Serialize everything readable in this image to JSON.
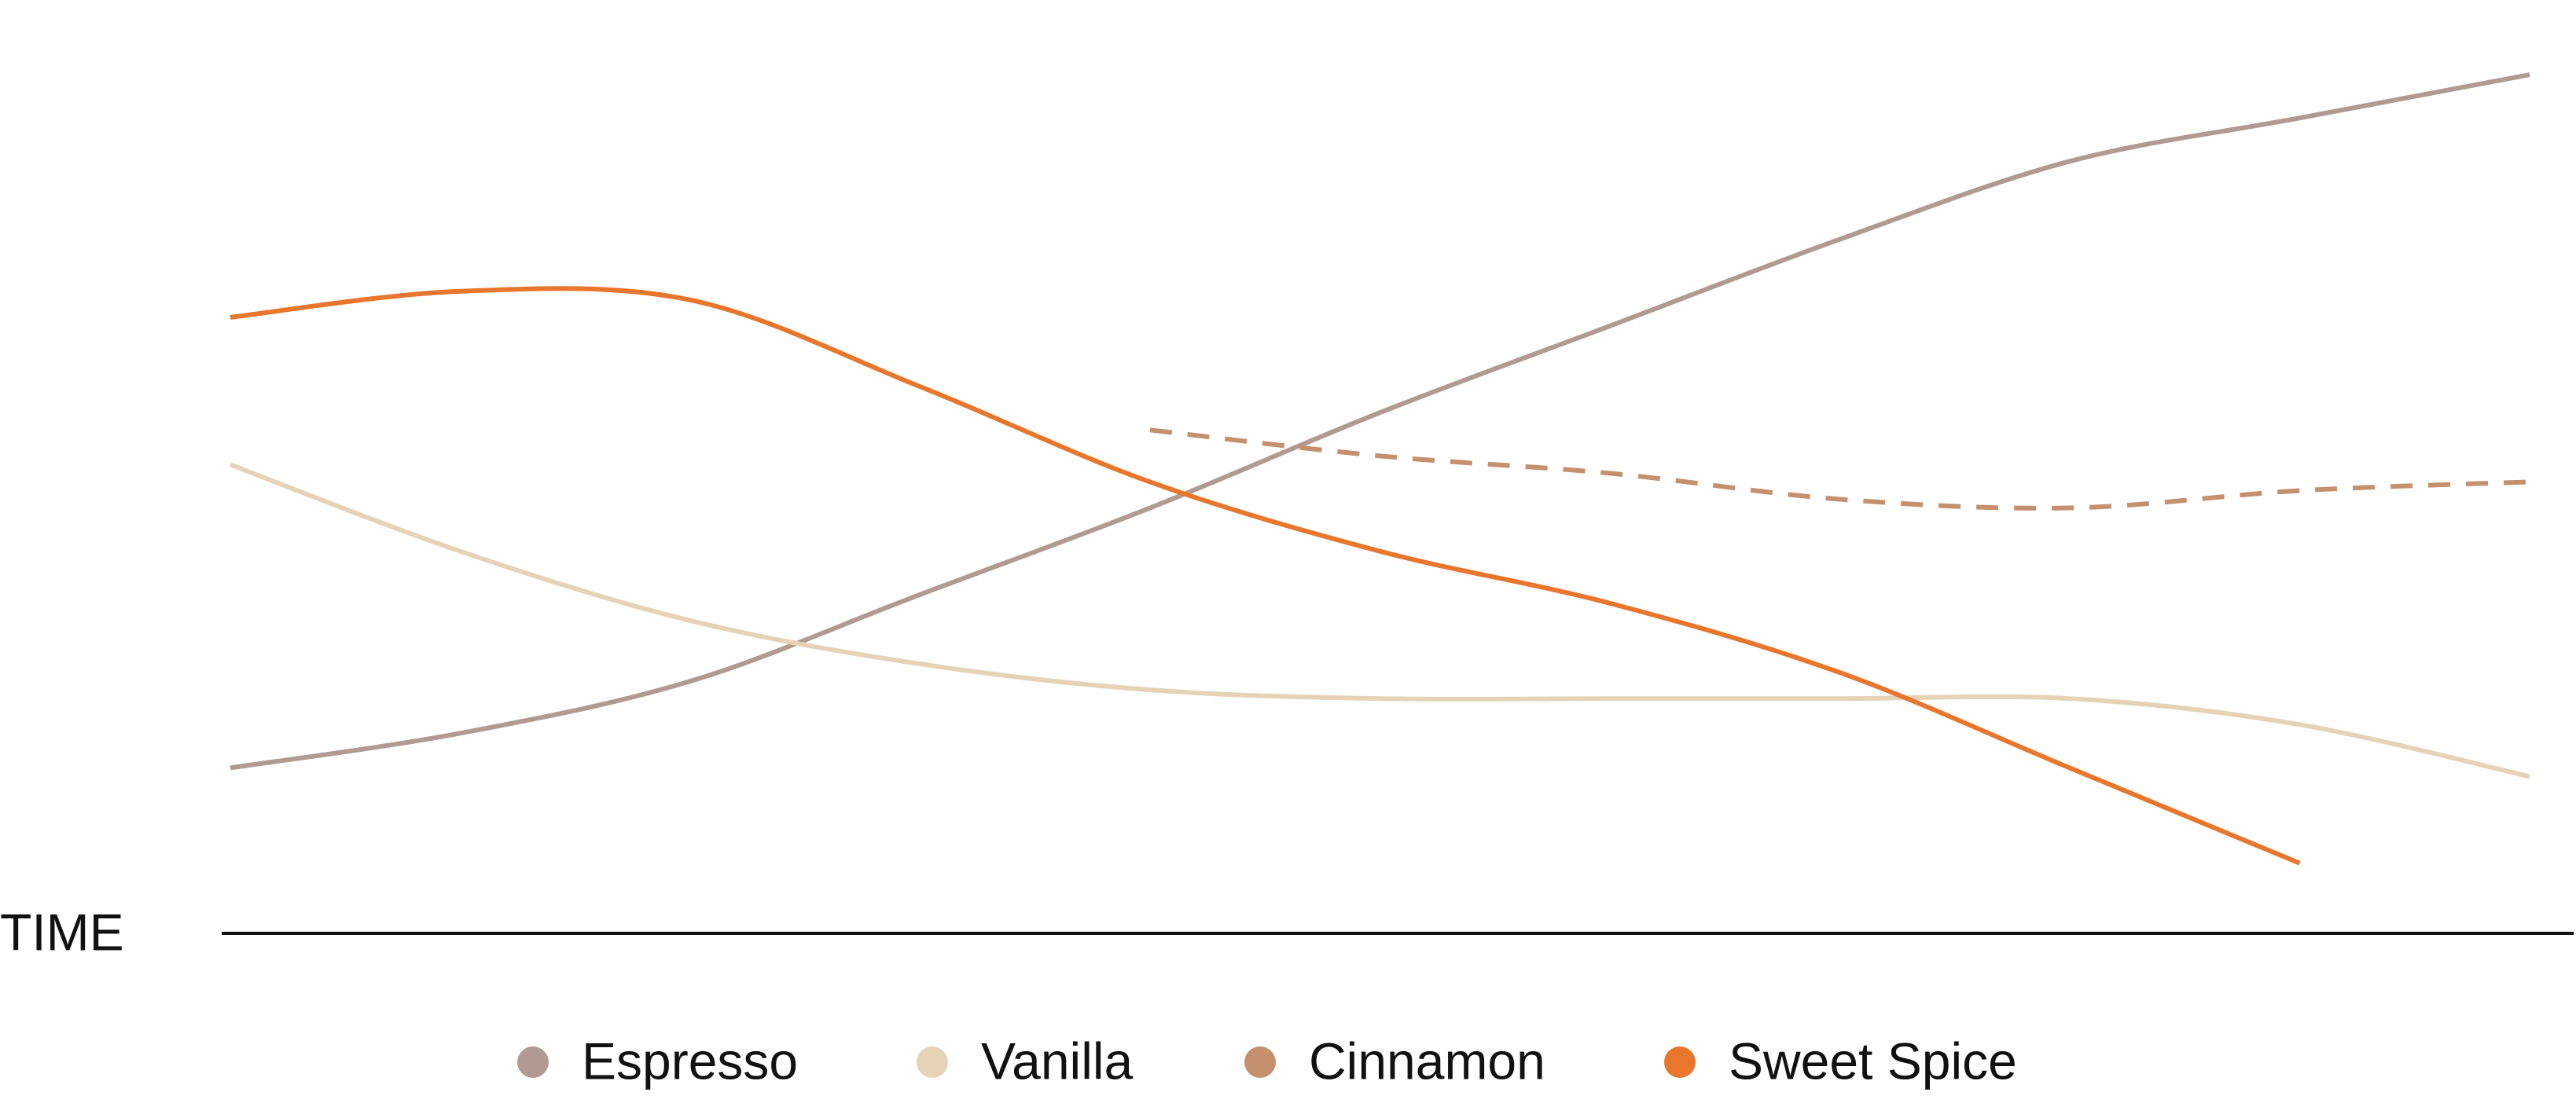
{
  "chart_data": {
    "type": "line",
    "x_label": "TIME",
    "categories": [
      null,
      null,
      null,
      null,
      null,
      null,
      null,
      null,
      null,
      null,
      null
    ],
    "ylim": [
      0,
      100
    ],
    "series": [
      {
        "name": "Espresso",
        "color": "#b09a91",
        "values": [
          19,
          23,
          29,
          39,
          49,
          60,
          70,
          80,
          89,
          94,
          99
        ]
      },
      {
        "name": "Vanilla",
        "color": "#e6d3b7",
        "values": [
          54,
          44,
          36,
          31,
          28,
          27,
          27,
          27,
          27,
          24,
          18
        ]
      },
      {
        "name": "Cinnamon",
        "color": "#c4906e",
        "dashed": true,
        "values": [
          null,
          null,
          null,
          null,
          58,
          55,
          53,
          50,
          49,
          51,
          52
        ]
      },
      {
        "name": "Sweet Spice",
        "color": "#e8762c",
        "values": [
          71,
          74,
          73,
          63,
          52,
          44,
          38,
          30,
          19,
          8,
          null
        ]
      }
    ]
  }
}
